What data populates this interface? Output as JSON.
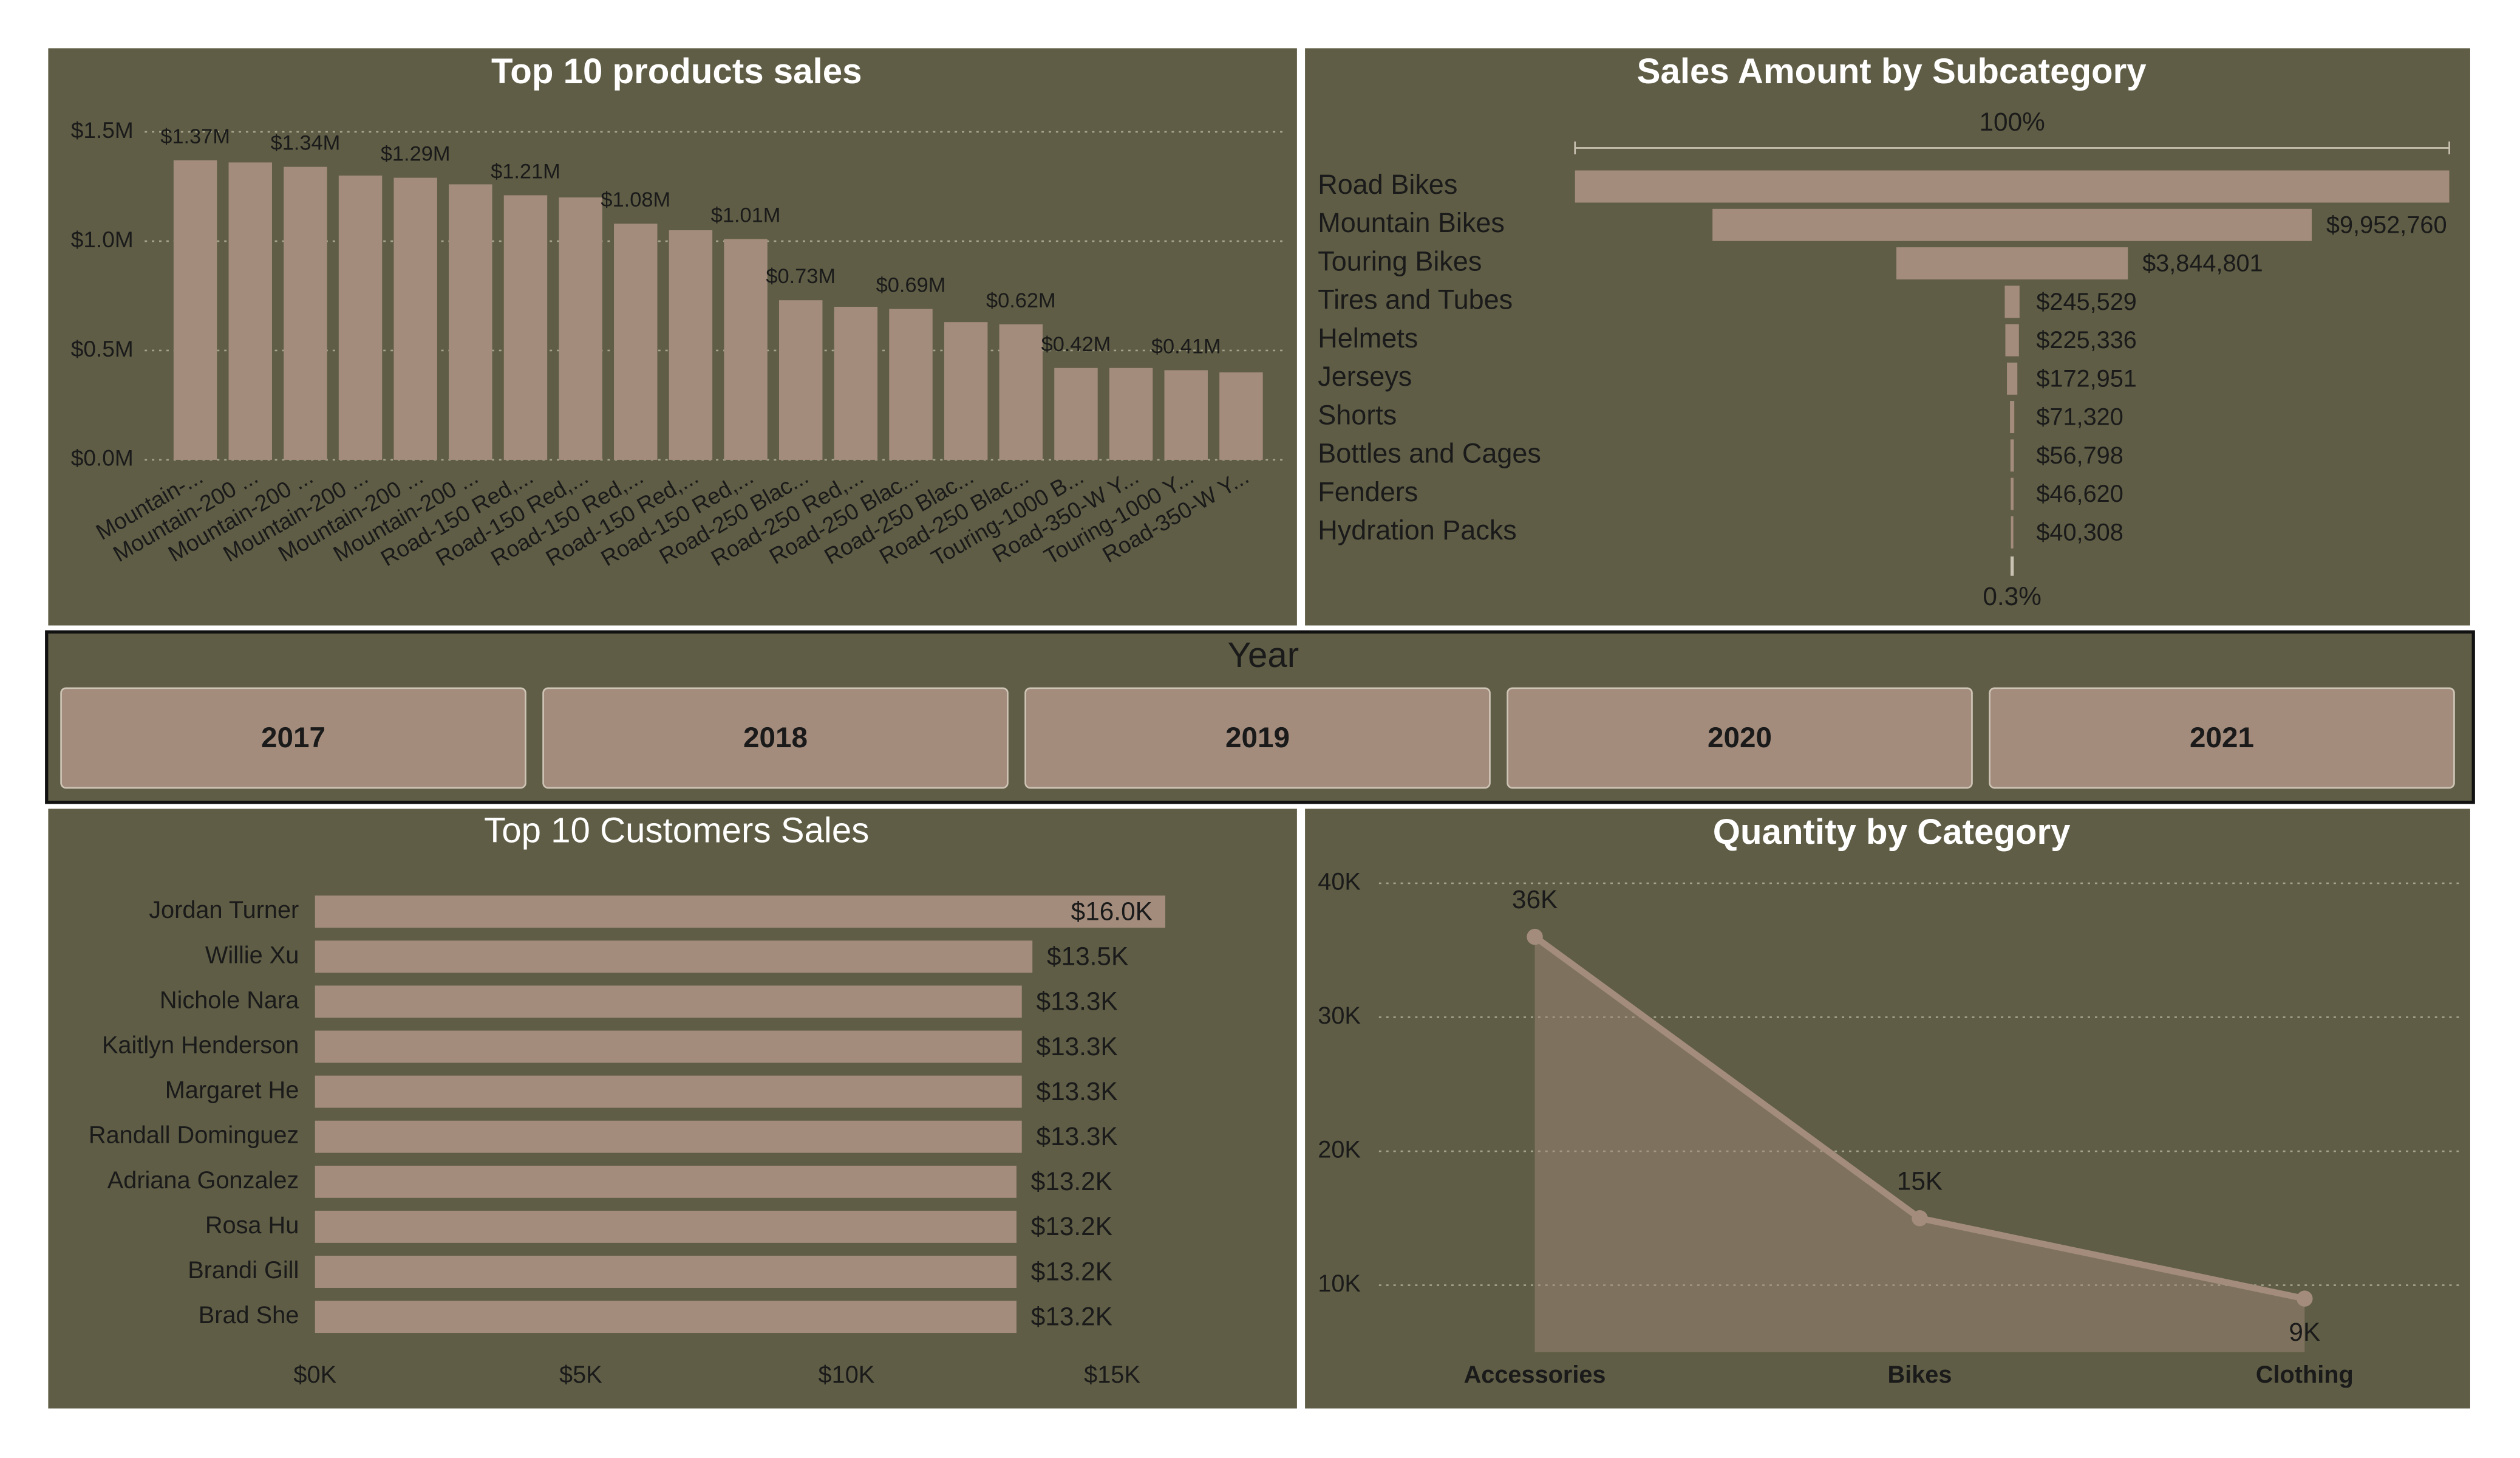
{
  "chart_data": [
    {
      "type": "bar",
      "title": "Top 10 products sales",
      "categories": [
        "Mountain-...",
        "Mountain-200 ...",
        "Mountain-200 ...",
        "Mountain-200 ...",
        "Mountain-200 ...",
        "Mountain-200 ...",
        "Road-150 Red,...",
        "Road-150 Red,...",
        "Road-150 Red,...",
        "Road-150 Red,...",
        "Road-150 Red,...",
        "Road-250 Blac...",
        "Road-250 Red,...",
        "Road-250 Blac...",
        "Road-250 Blac...",
        "Road-250 Blac...",
        "Touring-1000 B...",
        "Road-350-W Y...",
        "Touring-1000 Y...",
        "Road-350-W Y..."
      ],
      "values": [
        1370000,
        1360000,
        1340000,
        1300000,
        1290000,
        1260000,
        1210000,
        1200000,
        1080000,
        1050000,
        1010000,
        730000,
        700000,
        690000,
        630000,
        620000,
        420000,
        420000,
        410000,
        400000
      ],
      "value_labels": [
        "$1.37M",
        null,
        "$1.34M",
        null,
        "$1.29M",
        null,
        "$1.21M",
        null,
        "$1.08M",
        null,
        "$1.01M",
        "$0.73M",
        null,
        "$0.69M",
        null,
        "$0.62M",
        "$0.42M",
        null,
        "$0.41M",
        null
      ],
      "color": "#a38c7c",
      "ylim": [
        0,
        1500000
      ],
      "yticks": [
        {
          "value": 0,
          "label": "$0.0M"
        },
        {
          "value": 500000,
          "label": "$0.5M"
        },
        {
          "value": 1000000,
          "label": "$1.0M"
        },
        {
          "value": 1500000,
          "label": "$1.5M"
        }
      ],
      "grid": true
    },
    {
      "type": "funnel",
      "title": "Sales Amount by Subcategory",
      "categories": [
        "Road Bikes",
        "Mountain Bikes",
        "Touring Bikes",
        "Tires and Tubes",
        "Helmets",
        "Jerseys",
        "Shorts",
        "Bottles and Cages",
        "Fenders",
        "Hydration Packs"
      ],
      "values": [
        14520000,
        9952760,
        3844801,
        245529,
        225336,
        172951,
        71320,
        56798,
        46620,
        40308
      ],
      "value_labels": [
        null,
        "$9,952,760",
        "$3,844,801",
        "$245,529",
        "$225,336",
        "$172,951",
        "$71,320",
        "$56,798",
        "$46,620",
        "$40,308"
      ],
      "top_label": "100%",
      "bottom_label": "0.3%",
      "color": "#a38c7c"
    },
    {
      "type": "hbar",
      "title": "Top 10 Customers Sales",
      "categories": [
        "Jordan Turner",
        "Willie Xu",
        "Nichole Nara",
        "Kaitlyn Henderson",
        "Margaret He",
        "Randall Dominguez",
        "Adriana Gonzalez",
        "Rosa Hu",
        "Brandi Gill",
        "Brad She"
      ],
      "values": [
        16000,
        13500,
        13300,
        13300,
        13300,
        13300,
        13200,
        13200,
        13200,
        13200
      ],
      "value_labels": [
        "$16.0K",
        "$13.5K",
        "$13.3K",
        "$13.3K",
        "$13.3K",
        "$13.3K",
        "$13.2K",
        "$13.2K",
        "$13.2K",
        "$13.2K"
      ],
      "color": "#a38c7c",
      "xlim": [
        0,
        15000
      ],
      "xticks": [
        {
          "value": 0,
          "label": "$0K"
        },
        {
          "value": 5000,
          "label": "$5K"
        },
        {
          "value": 10000,
          "label": "$10K"
        },
        {
          "value": 15000,
          "label": "$15K"
        }
      ]
    },
    {
      "type": "area",
      "title": "Quantity by Category",
      "categories": [
        "Accessories",
        "Bikes",
        "Clothing"
      ],
      "values": [
        36000,
        15000,
        9000
      ],
      "value_labels": [
        "36K",
        "15K",
        "9K"
      ],
      "color": "#a38c7c",
      "ylim": [
        5000,
        41000
      ],
      "yticks": [
        {
          "value": 10000,
          "label": "10K"
        },
        {
          "value": 20000,
          "label": "20K"
        },
        {
          "value": 30000,
          "label": "30K"
        },
        {
          "value": 40000,
          "label": "40K"
        }
      ],
      "grid": true
    }
  ],
  "slicer": {
    "title": "Year",
    "options": [
      "2017",
      "2018",
      "2019",
      "2020",
      "2021"
    ]
  }
}
